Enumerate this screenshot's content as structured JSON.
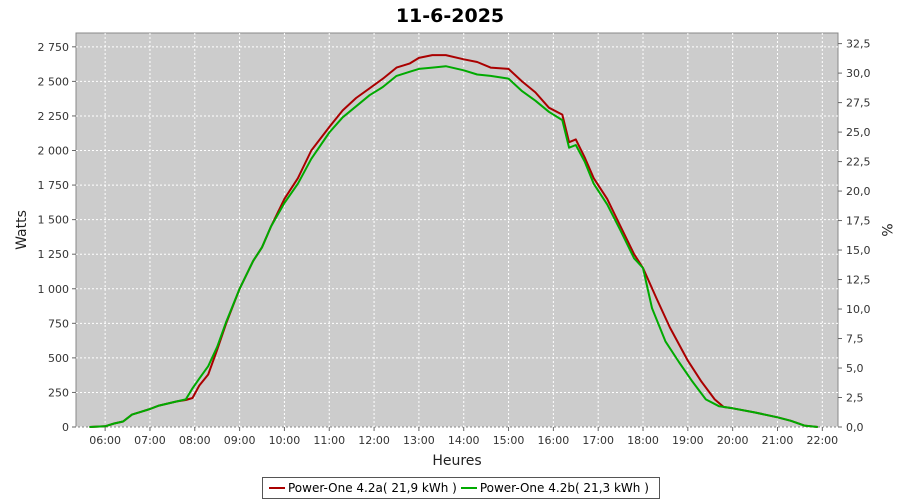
{
  "chart_data": {
    "type": "line",
    "title": "11-6-2025",
    "xlabel": "Heures",
    "ylabel": "Watts",
    "y2label": "%",
    "xlim": [
      5.35,
      22.35
    ],
    "ylim": [
      0,
      2850
    ],
    "y2lim": [
      0,
      33.4
    ],
    "x_ticks": [
      "06:00",
      "07:00",
      "08:00",
      "09:00",
      "10:00",
      "11:00",
      "12:00",
      "13:00",
      "14:00",
      "15:00",
      "16:00",
      "17:00",
      "18:00",
      "19:00",
      "20:00",
      "21:00",
      "22:00"
    ],
    "y_ticks": [
      "0",
      "250",
      "500",
      "750",
      "1 000",
      "1 250",
      "1 500",
      "1 750",
      "2 000",
      "2 250",
      "2 500",
      "2 750"
    ],
    "y2_ticks": [
      "0,0",
      "2,5",
      "5,0",
      "7,5",
      "10,0",
      "12,5",
      "15,0",
      "17,5",
      "20,0",
      "22,5",
      "25,0",
      "27,5",
      "30,0",
      "32,5"
    ],
    "grid": true,
    "legend_position": "bottom",
    "series": [
      {
        "name": "Power-One 4.2a( 21,9 kWh )",
        "color": "#aa0000",
        "points": [
          [
            5.65,
            0
          ],
          [
            6.0,
            5
          ],
          [
            6.2,
            25
          ],
          [
            6.4,
            40
          ],
          [
            6.6,
            90
          ],
          [
            6.8,
            110
          ],
          [
            7.0,
            130
          ],
          [
            7.2,
            155
          ],
          [
            7.4,
            170
          ],
          [
            7.6,
            185
          ],
          [
            7.8,
            195
          ],
          [
            7.95,
            210
          ],
          [
            8.1,
            300
          ],
          [
            8.3,
            380
          ],
          [
            8.5,
            560
          ],
          [
            8.7,
            750
          ],
          [
            9.0,
            1000
          ],
          [
            9.3,
            1200
          ],
          [
            9.5,
            1300
          ],
          [
            9.7,
            1450
          ],
          [
            10.0,
            1650
          ],
          [
            10.3,
            1800
          ],
          [
            10.6,
            2000
          ],
          [
            11.0,
            2170
          ],
          [
            11.3,
            2290
          ],
          [
            11.6,
            2380
          ],
          [
            11.9,
            2450
          ],
          [
            12.2,
            2520
          ],
          [
            12.5,
            2600
          ],
          [
            12.8,
            2630
          ],
          [
            13.0,
            2670
          ],
          [
            13.3,
            2690
          ],
          [
            13.6,
            2690
          ],
          [
            14.0,
            2660
          ],
          [
            14.3,
            2640
          ],
          [
            14.6,
            2600
          ],
          [
            15.0,
            2590
          ],
          [
            15.3,
            2500
          ],
          [
            15.6,
            2420
          ],
          [
            15.9,
            2310
          ],
          [
            16.2,
            2260
          ],
          [
            16.35,
            2060
          ],
          [
            16.5,
            2080
          ],
          [
            16.7,
            1950
          ],
          [
            16.9,
            1800
          ],
          [
            17.2,
            1650
          ],
          [
            17.5,
            1450
          ],
          [
            17.8,
            1250
          ],
          [
            18.0,
            1150
          ],
          [
            18.3,
            930
          ],
          [
            18.6,
            720
          ],
          [
            19.0,
            480
          ],
          [
            19.3,
            330
          ],
          [
            19.6,
            200
          ],
          [
            19.8,
            145
          ],
          [
            20.0,
            135
          ],
          [
            20.5,
            105
          ],
          [
            21.0,
            70
          ],
          [
            21.3,
            45
          ],
          [
            21.6,
            10
          ],
          [
            21.9,
            0
          ]
        ]
      },
      {
        "name": "Power-One 4.2b( 21,3 kWh )",
        "color": "#00aa00",
        "points": [
          [
            5.65,
            0
          ],
          [
            6.0,
            5
          ],
          [
            6.2,
            25
          ],
          [
            6.4,
            40
          ],
          [
            6.6,
            90
          ],
          [
            6.8,
            110
          ],
          [
            7.0,
            130
          ],
          [
            7.2,
            155
          ],
          [
            7.4,
            170
          ],
          [
            7.6,
            185
          ],
          [
            7.8,
            200
          ],
          [
            7.95,
            280
          ],
          [
            8.1,
            350
          ],
          [
            8.3,
            440
          ],
          [
            8.5,
            580
          ],
          [
            8.7,
            760
          ],
          [
            9.0,
            1000
          ],
          [
            9.3,
            1200
          ],
          [
            9.5,
            1300
          ],
          [
            9.7,
            1450
          ],
          [
            10.0,
            1620
          ],
          [
            10.3,
            1760
          ],
          [
            10.6,
            1940
          ],
          [
            11.0,
            2130
          ],
          [
            11.3,
            2240
          ],
          [
            11.6,
            2320
          ],
          [
            11.9,
            2400
          ],
          [
            12.2,
            2460
          ],
          [
            12.5,
            2540
          ],
          [
            12.8,
            2570
          ],
          [
            13.0,
            2590
          ],
          [
            13.3,
            2600
          ],
          [
            13.6,
            2610
          ],
          [
            14.0,
            2580
          ],
          [
            14.3,
            2550
          ],
          [
            14.6,
            2540
          ],
          [
            15.0,
            2520
          ],
          [
            15.3,
            2430
          ],
          [
            15.6,
            2360
          ],
          [
            15.9,
            2280
          ],
          [
            16.2,
            2220
          ],
          [
            16.35,
            2020
          ],
          [
            16.5,
            2040
          ],
          [
            16.7,
            1920
          ],
          [
            16.9,
            1760
          ],
          [
            17.2,
            1610
          ],
          [
            17.5,
            1420
          ],
          [
            17.8,
            1220
          ],
          [
            18.0,
            1150
          ],
          [
            18.2,
            860
          ],
          [
            18.5,
            620
          ],
          [
            18.8,
            470
          ],
          [
            19.1,
            330
          ],
          [
            19.4,
            200
          ],
          [
            19.7,
            150
          ],
          [
            20.0,
            135
          ],
          [
            20.5,
            105
          ],
          [
            21.0,
            70
          ],
          [
            21.3,
            45
          ],
          [
            21.6,
            10
          ],
          [
            21.9,
            0
          ]
        ]
      }
    ]
  }
}
